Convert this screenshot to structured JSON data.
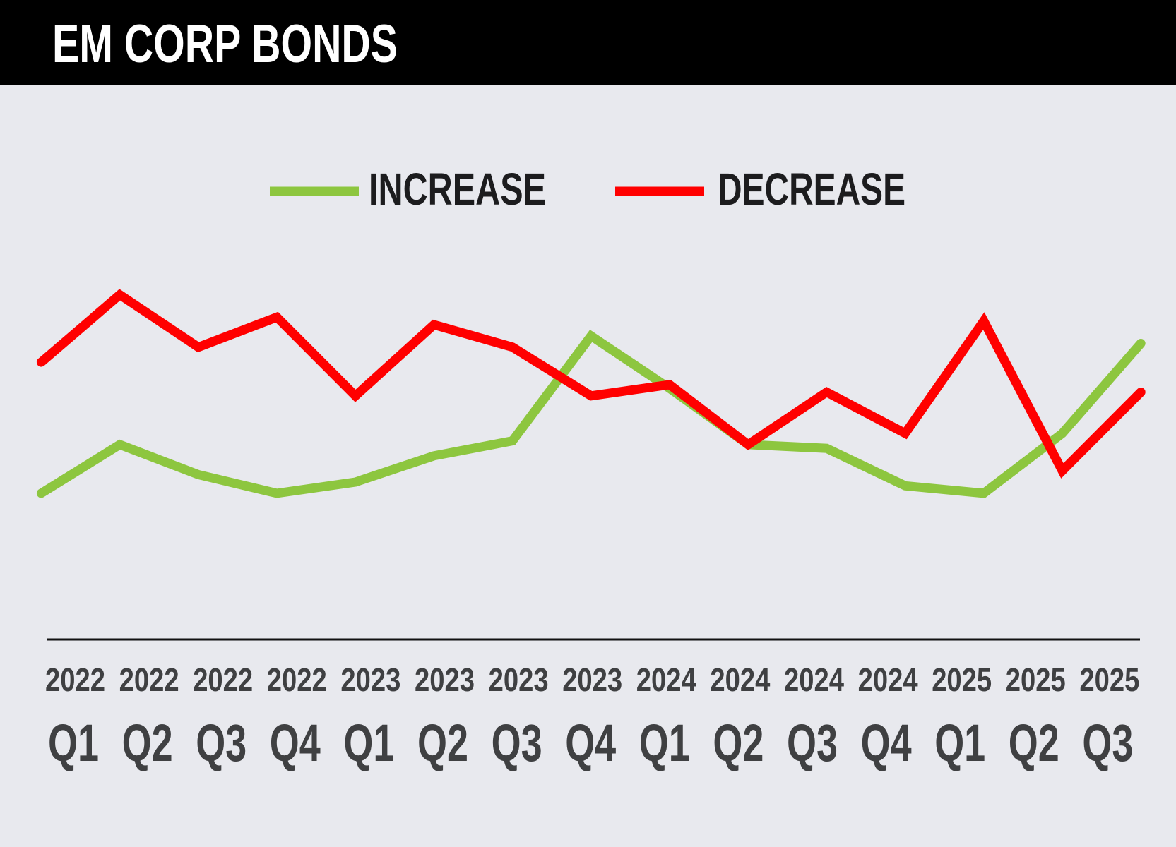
{
  "header": {
    "title": "EM CORP BONDS"
  },
  "colors": {
    "header_bg": "#000000",
    "background": "#e8e9ee",
    "increase": "#8dc63f",
    "decrease": "#ff0000",
    "axis": "#111111",
    "tick_text": "#3f4042",
    "legend_text": "#1c1c1e"
  },
  "chart_data": {
    "type": "line",
    "title": "EM CORP BONDS",
    "xlabel": "",
    "ylabel": "",
    "ylim": [
      0,
      100
    ],
    "grid": false,
    "legend_position": "top-center",
    "categories": [
      {
        "year": "2022",
        "quarter": "Q1"
      },
      {
        "year": "2022",
        "quarter": "Q2"
      },
      {
        "year": "2022",
        "quarter": "Q3"
      },
      {
        "year": "2022",
        "quarter": "Q4"
      },
      {
        "year": "2023",
        "quarter": "Q1"
      },
      {
        "year": "2023",
        "quarter": "Q2"
      },
      {
        "year": "2023",
        "quarter": "Q3"
      },
      {
        "year": "2023",
        "quarter": "Q4"
      },
      {
        "year": "2024",
        "quarter": "Q1"
      },
      {
        "year": "2024",
        "quarter": "Q2"
      },
      {
        "year": "2024",
        "quarter": "Q3"
      },
      {
        "year": "2024",
        "quarter": "Q4"
      },
      {
        "year": "2025",
        "quarter": "Q1"
      },
      {
        "year": "2025",
        "quarter": "Q2"
      },
      {
        "year": "2025",
        "quarter": "Q3"
      }
    ],
    "series": [
      {
        "name": "INCREASE",
        "color": "#8dc63f",
        "values": [
          39,
          52,
          44,
          39,
          42,
          49,
          53,
          81,
          67,
          52,
          51,
          41,
          39,
          55,
          79
        ]
      },
      {
        "name": "DECREASE",
        "color": "#ff0000",
        "values": [
          74,
          92,
          78,
          86,
          65,
          84,
          78,
          65,
          68,
          52,
          66,
          55,
          85,
          45,
          66
        ]
      }
    ]
  }
}
